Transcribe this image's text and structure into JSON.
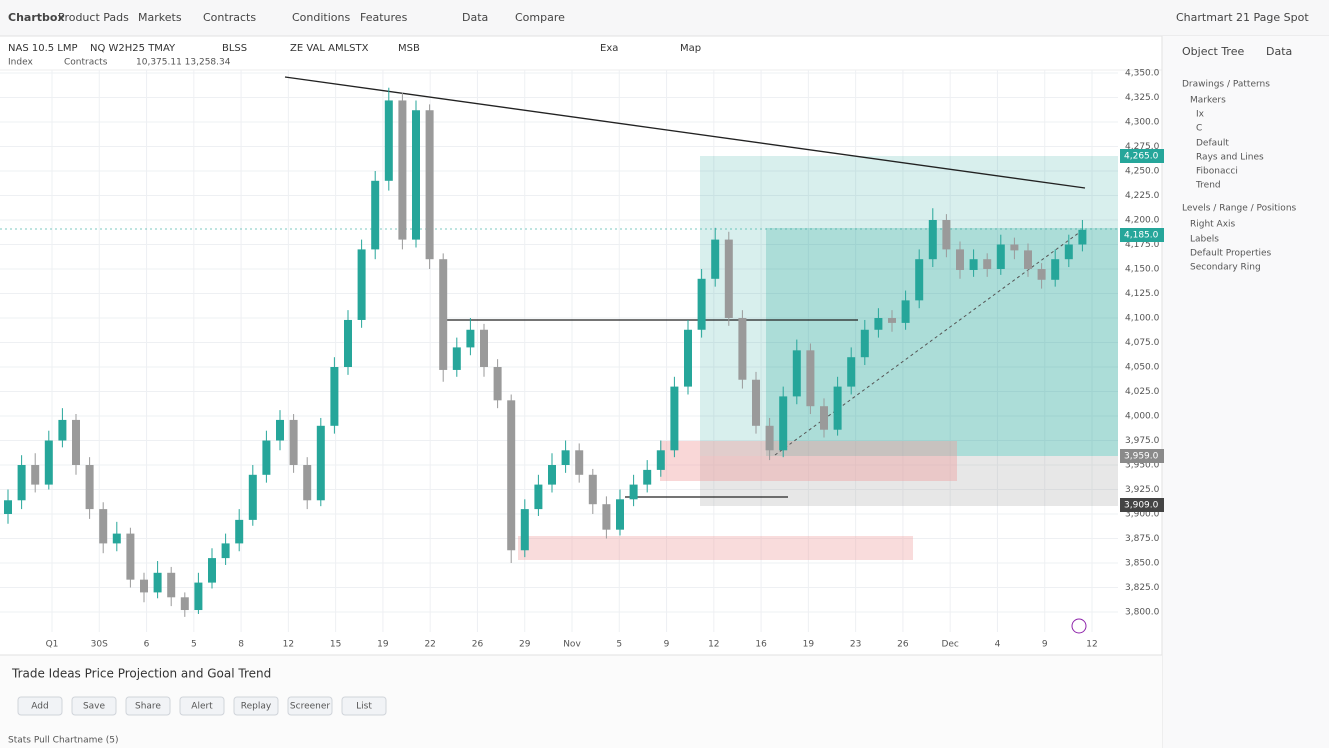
{
  "header": {
    "logo": "Chartbox",
    "menu": [
      "Product Pads",
      "Markets",
      "Contracts",
      "Conditions",
      "Features",
      "Data",
      "Compare"
    ],
    "account": "Chartmart 21 Page Spot"
  },
  "toolbar": [
    "NAS 10.5 LMP",
    "NQ W2H25 TMAY",
    "BLSS",
    "ZE VAL AMLSTX",
    "MSB",
    "Exa",
    "Map"
  ],
  "legend": [
    "Index",
    "Contracts",
    "10,375.11 13,258.34"
  ],
  "chart_data": {
    "type": "candlestick",
    "up_color": "#26a69a",
    "down_color": "#9a9a9a",
    "candles": [
      [
        3900,
        3925,
        3890,
        3914
      ],
      [
        3914,
        3960,
        3905,
        3950
      ],
      [
        3950,
        3962,
        3922,
        3930
      ],
      [
        3930,
        3985,
        3925,
        3975
      ],
      [
        3975,
        4008,
        3968,
        3996
      ],
      [
        3996,
        4002,
        3940,
        3950
      ],
      [
        3950,
        3958,
        3895,
        3905
      ],
      [
        3905,
        3912,
        3860,
        3870
      ],
      [
        3870,
        3892,
        3862,
        3880
      ],
      [
        3880,
        3886,
        3825,
        3833
      ],
      [
        3833,
        3840,
        3810,
        3820
      ],
      [
        3820,
        3852,
        3814,
        3840
      ],
      [
        3840,
        3846,
        3806,
        3815
      ],
      [
        3815,
        3820,
        3795,
        3802
      ],
      [
        3802,
        3840,
        3798,
        3830
      ],
      [
        3830,
        3865,
        3824,
        3855
      ],
      [
        3855,
        3880,
        3848,
        3870
      ],
      [
        3870,
        3905,
        3862,
        3894
      ],
      [
        3894,
        3950,
        3888,
        3940
      ],
      [
        3940,
        3985,
        3932,
        3975
      ],
      [
        3975,
        4006,
        3965,
        3996
      ],
      [
        3996,
        4002,
        3942,
        3950
      ],
      [
        3950,
        3958,
        3905,
        3914
      ],
      [
        3914,
        3998,
        3908,
        3990
      ],
      [
        3990,
        4060,
        3982,
        4050
      ],
      [
        4050,
        4108,
        4042,
        4098
      ],
      [
        4098,
        4180,
        4090,
        4170
      ],
      [
        4170,
        4250,
        4160,
        4240
      ],
      [
        4240,
        4335,
        4230,
        4322
      ],
      [
        4322,
        4330,
        4170,
        4180
      ],
      [
        4180,
        4322,
        4172,
        4312
      ],
      [
        4312,
        4318,
        4150,
        4160
      ],
      [
        4160,
        4166,
        4035,
        4047
      ],
      [
        4047,
        4080,
        4040,
        4070
      ],
      [
        4070,
        4100,
        4062,
        4088
      ],
      [
        4088,
        4094,
        4040,
        4050
      ],
      [
        4050,
        4058,
        4008,
        4016
      ],
      [
        4016,
        4022,
        3850,
        3863
      ],
      [
        3863,
        3915,
        3856,
        3905
      ],
      [
        3905,
        3940,
        3898,
        3930
      ],
      [
        3930,
        3962,
        3922,
        3950
      ],
      [
        3950,
        3975,
        3942,
        3965
      ],
      [
        3965,
        3972,
        3932,
        3940
      ],
      [
        3940,
        3946,
        3900,
        3910
      ],
      [
        3910,
        3918,
        3875,
        3884
      ],
      [
        3884,
        3925,
        3878,
        3915
      ],
      [
        3915,
        3940,
        3908,
        3930
      ],
      [
        3930,
        3955,
        3922,
        3945
      ],
      [
        3945,
        3975,
        3938,
        3965
      ],
      [
        3965,
        4040,
        3958,
        4030
      ],
      [
        4030,
        4098,
        4022,
        4088
      ],
      [
        4088,
        4150,
        4080,
        4140
      ],
      [
        4140,
        4192,
        4132,
        4180
      ],
      [
        4180,
        4188,
        4092,
        4100
      ],
      [
        4100,
        4108,
        4028,
        4037
      ],
      [
        4037,
        4045,
        3982,
        3990
      ],
      [
        3990,
        3998,
        3955,
        3965
      ],
      [
        3965,
        4030,
        3958,
        4020
      ],
      [
        4020,
        4078,
        4012,
        4067
      ],
      [
        4067,
        4074,
        4002,
        4010
      ],
      [
        4010,
        4018,
        3978,
        3986
      ],
      [
        3986,
        4040,
        3980,
        4030
      ],
      [
        4030,
        4070,
        4022,
        4060
      ],
      [
        4060,
        4098,
        4052,
        4088
      ],
      [
        4088,
        4110,
        4080,
        4100
      ],
      [
        4100,
        4108,
        4086,
        4095
      ],
      [
        4095,
        4128,
        4088,
        4118
      ],
      [
        4118,
        4170,
        4110,
        4160
      ],
      [
        4160,
        4212,
        4152,
        4200
      ],
      [
        4200,
        4206,
        4162,
        4170
      ],
      [
        4170,
        4178,
        4140,
        4149
      ],
      [
        4149,
        4170,
        4142,
        4160
      ],
      [
        4160,
        4166,
        4142,
        4150
      ],
      [
        4150,
        4185,
        4144,
        4175
      ],
      [
        4175,
        4182,
        4160,
        4169
      ],
      [
        4169,
        4176,
        4142,
        4150
      ],
      [
        4150,
        4156,
        4130,
        4139
      ],
      [
        4139,
        4170,
        4132,
        4160
      ],
      [
        4160,
        4185,
        4152,
        4175
      ],
      [
        4175,
        4200,
        4168,
        4190
      ]
    ],
    "ylim": [
      3800,
      4350
    ],
    "yticks": [
      {
        "value": 3800,
        "label": "3,800.0"
      },
      {
        "value": 3825,
        "label": "3,825.0"
      },
      {
        "value": 3850,
        "label": "3,850.0"
      },
      {
        "value": 3875,
        "label": "3,875.0"
      },
      {
        "value": 3900,
        "label": "3,900.0"
      },
      {
        "value": 3925,
        "label": "3,925.0"
      },
      {
        "value": 3950,
        "label": "3,950.0"
      },
      {
        "value": 3975,
        "label": "3,975.0"
      },
      {
        "value": 4000,
        "label": "4,000.0"
      },
      {
        "value": 4025,
        "label": "4,025.0"
      },
      {
        "value": 4050,
        "label": "4,050.0"
      },
      {
        "value": 4075,
        "label": "4,075.0"
      },
      {
        "value": 4100,
        "label": "4,100.0"
      },
      {
        "value": 4125,
        "label": "4,125.0"
      },
      {
        "value": 4150,
        "label": "4,150.0"
      },
      {
        "value": 4175,
        "label": "4,175.0"
      },
      {
        "value": 4200,
        "label": "4,200.0"
      },
      {
        "value": 4225,
        "label": "4,225.0"
      },
      {
        "value": 4250,
        "label": "4,250.0"
      },
      {
        "value": 4275,
        "label": "4,275.0"
      },
      {
        "value": 4300,
        "label": "4,300.0"
      },
      {
        "value": 4325,
        "label": "4,325.0"
      },
      {
        "value": 4350,
        "label": "4,350.0"
      }
    ],
    "xlabels": [
      "Q1",
      "30S",
      "6",
      "5",
      "8",
      "12",
      "15",
      "19",
      "22",
      "26",
      "29",
      "Nov",
      "5",
      "9",
      "12",
      "16",
      "19",
      "23",
      "26",
      "Dec",
      "4",
      "9",
      "12"
    ],
    "price_tags": [
      "4,265.0",
      "4,185.0",
      "3,959.0",
      "3,909.0"
    ]
  },
  "side_panel": {
    "tabs": [
      "Object Tree",
      "Data"
    ],
    "items": [
      "Drawings / Patterns",
      "Markers",
      "Ix",
      "C",
      "Default",
      "Rays and Lines",
      "Fibonacci",
      "Trend",
      "Levels / Range / Positions",
      "Right Axis",
      "Labels",
      "Default Properties",
      "Secondary Ring"
    ]
  },
  "bottom_panel": {
    "title": "Trade Ideas Price Projection and Goal Trend",
    "buttons": [
      "Add",
      "Save",
      "Share",
      "Alert",
      "Replay",
      "Screener",
      "List"
    ],
    "status": "Stats Pull Chartname (5)"
  }
}
